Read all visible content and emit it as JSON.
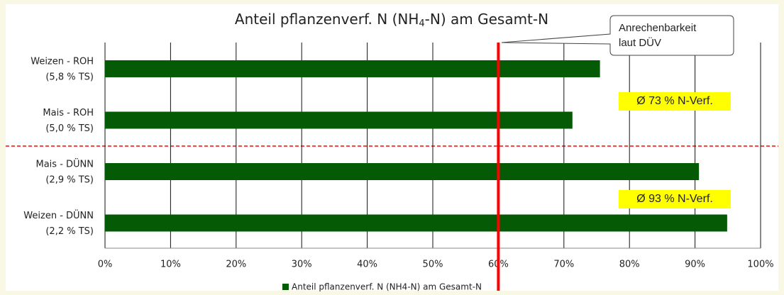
{
  "chart_data": {
    "type": "hbar",
    "title_parts": [
      "Anteil pflanzenverf. N (NH",
      "4",
      "-N) am Gesamt-N"
    ],
    "categories": [
      [
        "Weizen - ROH",
        "(5,8 % TS)"
      ],
      [
        "Mais - ROH",
        "(5,0 % TS)"
      ],
      [
        "Mais - DÜNN",
        "(2,9 % TS)"
      ],
      [
        "Weizen - DÜNN",
        "(2,2 % TS)"
      ]
    ],
    "series": [
      {
        "name": "Anteil pflanzenverf. N (NH4-N) am Gesamt-N",
        "color": "#055a05",
        "values": [
          75.5,
          71.3,
          90.6,
          94.9
        ]
      }
    ],
    "xlim": [
      0,
      100
    ],
    "xticks": [
      {
        "value": 0,
        "label": "0%"
      },
      {
        "value": 10,
        "label": "10%"
      },
      {
        "value": 20,
        "label": "20%"
      },
      {
        "value": 30,
        "label": "30%"
      },
      {
        "value": 40,
        "label": "40%"
      },
      {
        "value": 50,
        "label": "50%"
      },
      {
        "value": 60,
        "label": "60%"
      },
      {
        "value": 70,
        "label": "70%"
      },
      {
        "value": 80,
        "label": "80%"
      },
      {
        "value": 90,
        "label": "90%"
      },
      {
        "value": 100,
        "label": "100%"
      }
    ],
    "grid": true,
    "reference_line": {
      "value": 60,
      "color": "#ff0000"
    },
    "callout": [
      "Anrechenbarkeit",
      "laut DÜV"
    ],
    "group_labels": [
      "Ø 73 % N-Verf.",
      "Ø 93 % N-Verf."
    ],
    "legend": "bottom"
  }
}
